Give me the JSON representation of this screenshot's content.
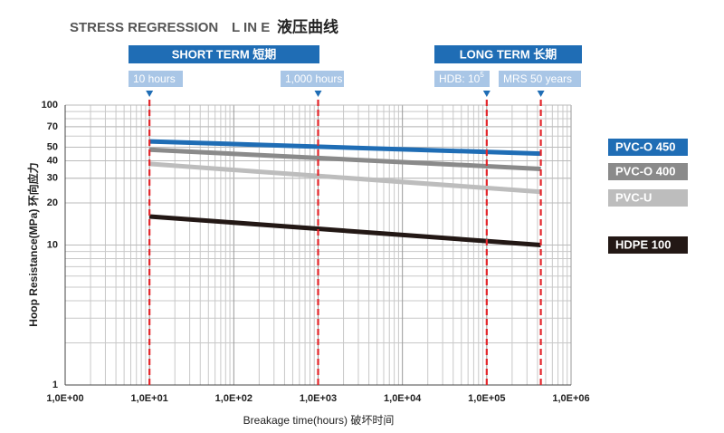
{
  "chart_data": {
    "type": "line",
    "title": "STRESS REGRESSION",
    "subtitle": "L IN E",
    "title_cn": "液压曲线",
    "x_label": "Breakage time(hours) 破坏时间",
    "y_label": "Hoop Resistance(MPa) 环向应力",
    "x_scale": "log",
    "y_scale": "log",
    "grid": true,
    "minor_grid": true,
    "legend_position": "right",
    "xlim": [
      1,
      1000000
    ],
    "xticks": [
      {
        "value": 1,
        "label": "1,0E+00"
      },
      {
        "value": 10,
        "label": "1,0E+01"
      },
      {
        "value": 100,
        "label": "1,0E+02"
      },
      {
        "value": 1000,
        "label": "1,0E+03"
      },
      {
        "value": 10000,
        "label": "1,0E+04"
      },
      {
        "value": 100000,
        "label": "1,0E+05"
      },
      {
        "value": 1000000,
        "label": "1,0E+06"
      }
    ],
    "ylim": [
      1,
      100
    ],
    "yticks": [
      1,
      10,
      20,
      30,
      40,
      50,
      70,
      100
    ],
    "x": [
      10,
      438000
    ],
    "series": [
      {
        "name": "PVC-O 450",
        "color": "#1f6db5",
        "values": [
          55,
          45
        ]
      },
      {
        "name": "PVC-O 400",
        "color": "#8a8a8a",
        "values": [
          48,
          35
        ]
      },
      {
        "name": "PVC-U",
        "color": "#bdbdbd",
        "values": [
          38,
          24
        ]
      },
      {
        "name": "HDPE 100",
        "color": "#231815",
        "values": [
          16,
          10
        ]
      }
    ],
    "banners": [
      {
        "label": "SHORT TERM 短期",
        "color": "#1f6db5"
      },
      {
        "label": "LONG TERM 长期",
        "color": "#1f6db5"
      }
    ],
    "reference_lines": [
      {
        "x": 10,
        "label": "10 hours"
      },
      {
        "x": 1000,
        "label": "1,000 hours"
      },
      {
        "x": 100000,
        "label": "HDB: 10",
        "superscript": "5"
      },
      {
        "x": 438000,
        "label": "MRS 50 years"
      }
    ],
    "reference_color": "#e3262b"
  }
}
